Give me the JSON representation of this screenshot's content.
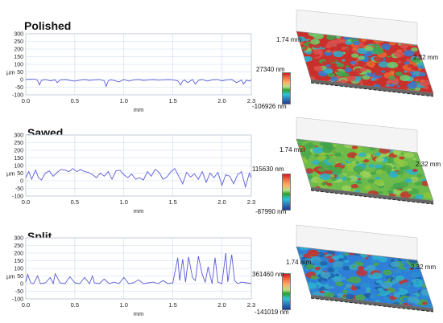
{
  "panels": [
    {
      "title": "Polished",
      "colorbar_max": "27340 nm",
      "colorbar_min": "-106926 nm",
      "width_label": "1.74 mm",
      "length_label": "2.32 mm",
      "surface_palette": [
        "#c9302c",
        "#d9534f",
        "#e8692f",
        "#3fa34d",
        "#2bb0cf",
        "#2f7ed8",
        "#6fcf6a"
      ]
    },
    {
      "title": "Sawed",
      "colorbar_max": "115630 nm",
      "colorbar_min": "-87990 nm",
      "width_label": "1.74 mm",
      "length_label": "2.32 mm",
      "surface_palette": [
        "#6dbb4a",
        "#8cc63f",
        "#4aa84a",
        "#2bb0cf",
        "#c9302c",
        "#9bd15a",
        "#3fa34d"
      ]
    },
    {
      "title": "Split",
      "colorbar_max": "361460 nm",
      "colorbar_min": "-141019 nm",
      "width_label": "1.74 mm",
      "length_label": "2.32 mm",
      "surface_palette": [
        "#2f7ed8",
        "#2bb0cf",
        "#3fa3c8",
        "#4aa84a",
        "#1f5fa8",
        "#2a8fd0",
        "#c9302c"
      ]
    }
  ],
  "chart_data": [
    {
      "type": "line",
      "title": "Polished",
      "xlabel": "mm",
      "ylabel": "µm",
      "xlim": [
        0,
        2.3
      ],
      "ylim": [
        -100,
        300
      ],
      "xticks": [
        0.0,
        0.5,
        1.0,
        1.5,
        2.0,
        2.3
      ],
      "xtick_labels": [
        "0.0",
        "0.5",
        "1.0",
        "1.5",
        "2.0",
        "2.3"
      ],
      "yticks": [
        -100,
        -50,
        0,
        50,
        100,
        150,
        200,
        250,
        300
      ],
      "ytick_labels": [
        "-100",
        "-50",
        "0",
        "50",
        "100",
        "150",
        "200",
        "250",
        "300"
      ],
      "grid": true,
      "line_color": "#5b5bd6",
      "x": [
        0.0,
        0.05,
        0.1,
        0.12,
        0.14,
        0.16,
        0.2,
        0.25,
        0.3,
        0.32,
        0.35,
        0.4,
        0.45,
        0.5,
        0.55,
        0.6,
        0.65,
        0.7,
        0.75,
        0.8,
        0.82,
        0.84,
        0.86,
        0.9,
        0.95,
        1.0,
        1.05,
        1.1,
        1.15,
        1.2,
        1.25,
        1.3,
        1.35,
        1.4,
        1.45,
        1.5,
        1.55,
        1.58,
        1.6,
        1.62,
        1.65,
        1.7,
        1.73,
        1.76,
        1.8,
        1.85,
        1.9,
        1.95,
        2.0,
        2.05,
        2.1,
        2.15,
        2.2,
        2.22,
        2.25,
        2.28,
        2.3
      ],
      "y": [
        0,
        2,
        1,
        -5,
        -35,
        -5,
        0,
        -8,
        -2,
        -20,
        -3,
        0,
        -6,
        -10,
        -4,
        0,
        -5,
        -2,
        0,
        -8,
        -45,
        -10,
        -2,
        -6,
        -15,
        0,
        -10,
        -2,
        0,
        -5,
        -3,
        0,
        -4,
        -2,
        0,
        -2,
        -8,
        -35,
        -10,
        -3,
        -20,
        0,
        -30,
        -5,
        0,
        -10,
        -2,
        0,
        -8,
        -2,
        0,
        -20,
        -3,
        -30,
        -4,
        -10,
        -2
      ]
    },
    {
      "type": "line",
      "title": "Sawed",
      "xlabel": "mm",
      "ylabel": "µm",
      "xlim": [
        0,
        2.3
      ],
      "ylim": [
        -100,
        300
      ],
      "xticks": [
        0.0,
        0.5,
        1.0,
        1.5,
        2.0,
        2.3
      ],
      "xtick_labels": [
        "0.0",
        "0.5",
        "1.0",
        "1.5",
        "2.0",
        "2.3"
      ],
      "yticks": [
        -100,
        -50,
        0,
        50,
        100,
        150,
        200,
        250,
        300
      ],
      "ytick_labels": [
        "-100",
        "-50",
        "0",
        "50",
        "100",
        "150",
        "200",
        "250",
        "300"
      ],
      "grid": true,
      "line_color": "#5b5bd6",
      "x": [
        0.0,
        0.03,
        0.06,
        0.1,
        0.13,
        0.16,
        0.2,
        0.24,
        0.28,
        0.32,
        0.36,
        0.4,
        0.44,
        0.48,
        0.52,
        0.56,
        0.6,
        0.64,
        0.68,
        0.72,
        0.76,
        0.8,
        0.84,
        0.88,
        0.92,
        0.96,
        1.0,
        1.04,
        1.08,
        1.12,
        1.16,
        1.2,
        1.24,
        1.28,
        1.32,
        1.36,
        1.4,
        1.44,
        1.48,
        1.52,
        1.56,
        1.6,
        1.64,
        1.68,
        1.72,
        1.76,
        1.8,
        1.84,
        1.88,
        1.92,
        1.96,
        2.0,
        2.04,
        2.08,
        2.12,
        2.16,
        2.2,
        2.24,
        2.28,
        2.3
      ],
      "y": [
        20,
        60,
        10,
        70,
        20,
        5,
        50,
        65,
        30,
        55,
        75,
        70,
        60,
        80,
        60,
        75,
        60,
        55,
        40,
        20,
        50,
        30,
        60,
        10,
        65,
        70,
        40,
        20,
        45,
        10,
        20,
        5,
        60,
        30,
        75,
        55,
        10,
        25,
        60,
        80,
        30,
        -20,
        55,
        25,
        45,
        10,
        60,
        -10,
        50,
        20,
        55,
        -30,
        40,
        30,
        -20,
        40,
        60,
        -40,
        50,
        20
      ]
    },
    {
      "type": "line",
      "title": "Split",
      "xlabel": "mm",
      "ylabel": "µm",
      "xlim": [
        0,
        2.3
      ],
      "ylim": [
        -100,
        300
      ],
      "xticks": [
        0.0,
        0.5,
        1.0,
        1.5,
        2.0,
        2.3
      ],
      "xtick_labels": [
        "0.0",
        "0.5",
        "1.0",
        "1.5",
        "2.0",
        "2.3"
      ],
      "yticks": [
        -100,
        -50,
        0,
        50,
        100,
        150,
        200,
        250,
        300
      ],
      "ytick_labels": [
        "-100",
        "-50",
        "0",
        "50",
        "100",
        "150",
        "200",
        "250",
        "300"
      ],
      "grid": true,
      "line_color": "#5b5bd6",
      "x": [
        0.0,
        0.02,
        0.05,
        0.08,
        0.12,
        0.15,
        0.2,
        0.25,
        0.28,
        0.3,
        0.35,
        0.4,
        0.45,
        0.5,
        0.55,
        0.6,
        0.65,
        0.68,
        0.7,
        0.75,
        0.8,
        0.85,
        0.9,
        0.95,
        1.0,
        1.05,
        1.1,
        1.15,
        1.2,
        1.25,
        1.3,
        1.35,
        1.4,
        1.45,
        1.5,
        1.55,
        1.57,
        1.6,
        1.63,
        1.66,
        1.7,
        1.73,
        1.76,
        1.8,
        1.83,
        1.86,
        1.9,
        1.93,
        1.96,
        2.0,
        2.04,
        2.06,
        2.1,
        2.13,
        2.16,
        2.2,
        2.25,
        2.3
      ],
      "y": [
        10,
        60,
        5,
        0,
        50,
        0,
        5,
        40,
        0,
        65,
        5,
        0,
        45,
        5,
        0,
        40,
        0,
        50,
        5,
        0,
        30,
        0,
        10,
        0,
        40,
        0,
        5,
        25,
        0,
        5,
        10,
        0,
        20,
        0,
        5,
        170,
        20,
        160,
        10,
        175,
        40,
        20,
        180,
        60,
        10,
        110,
        0,
        170,
        10,
        0,
        200,
        10,
        190,
        20,
        0,
        10,
        5,
        0
      ]
    }
  ]
}
